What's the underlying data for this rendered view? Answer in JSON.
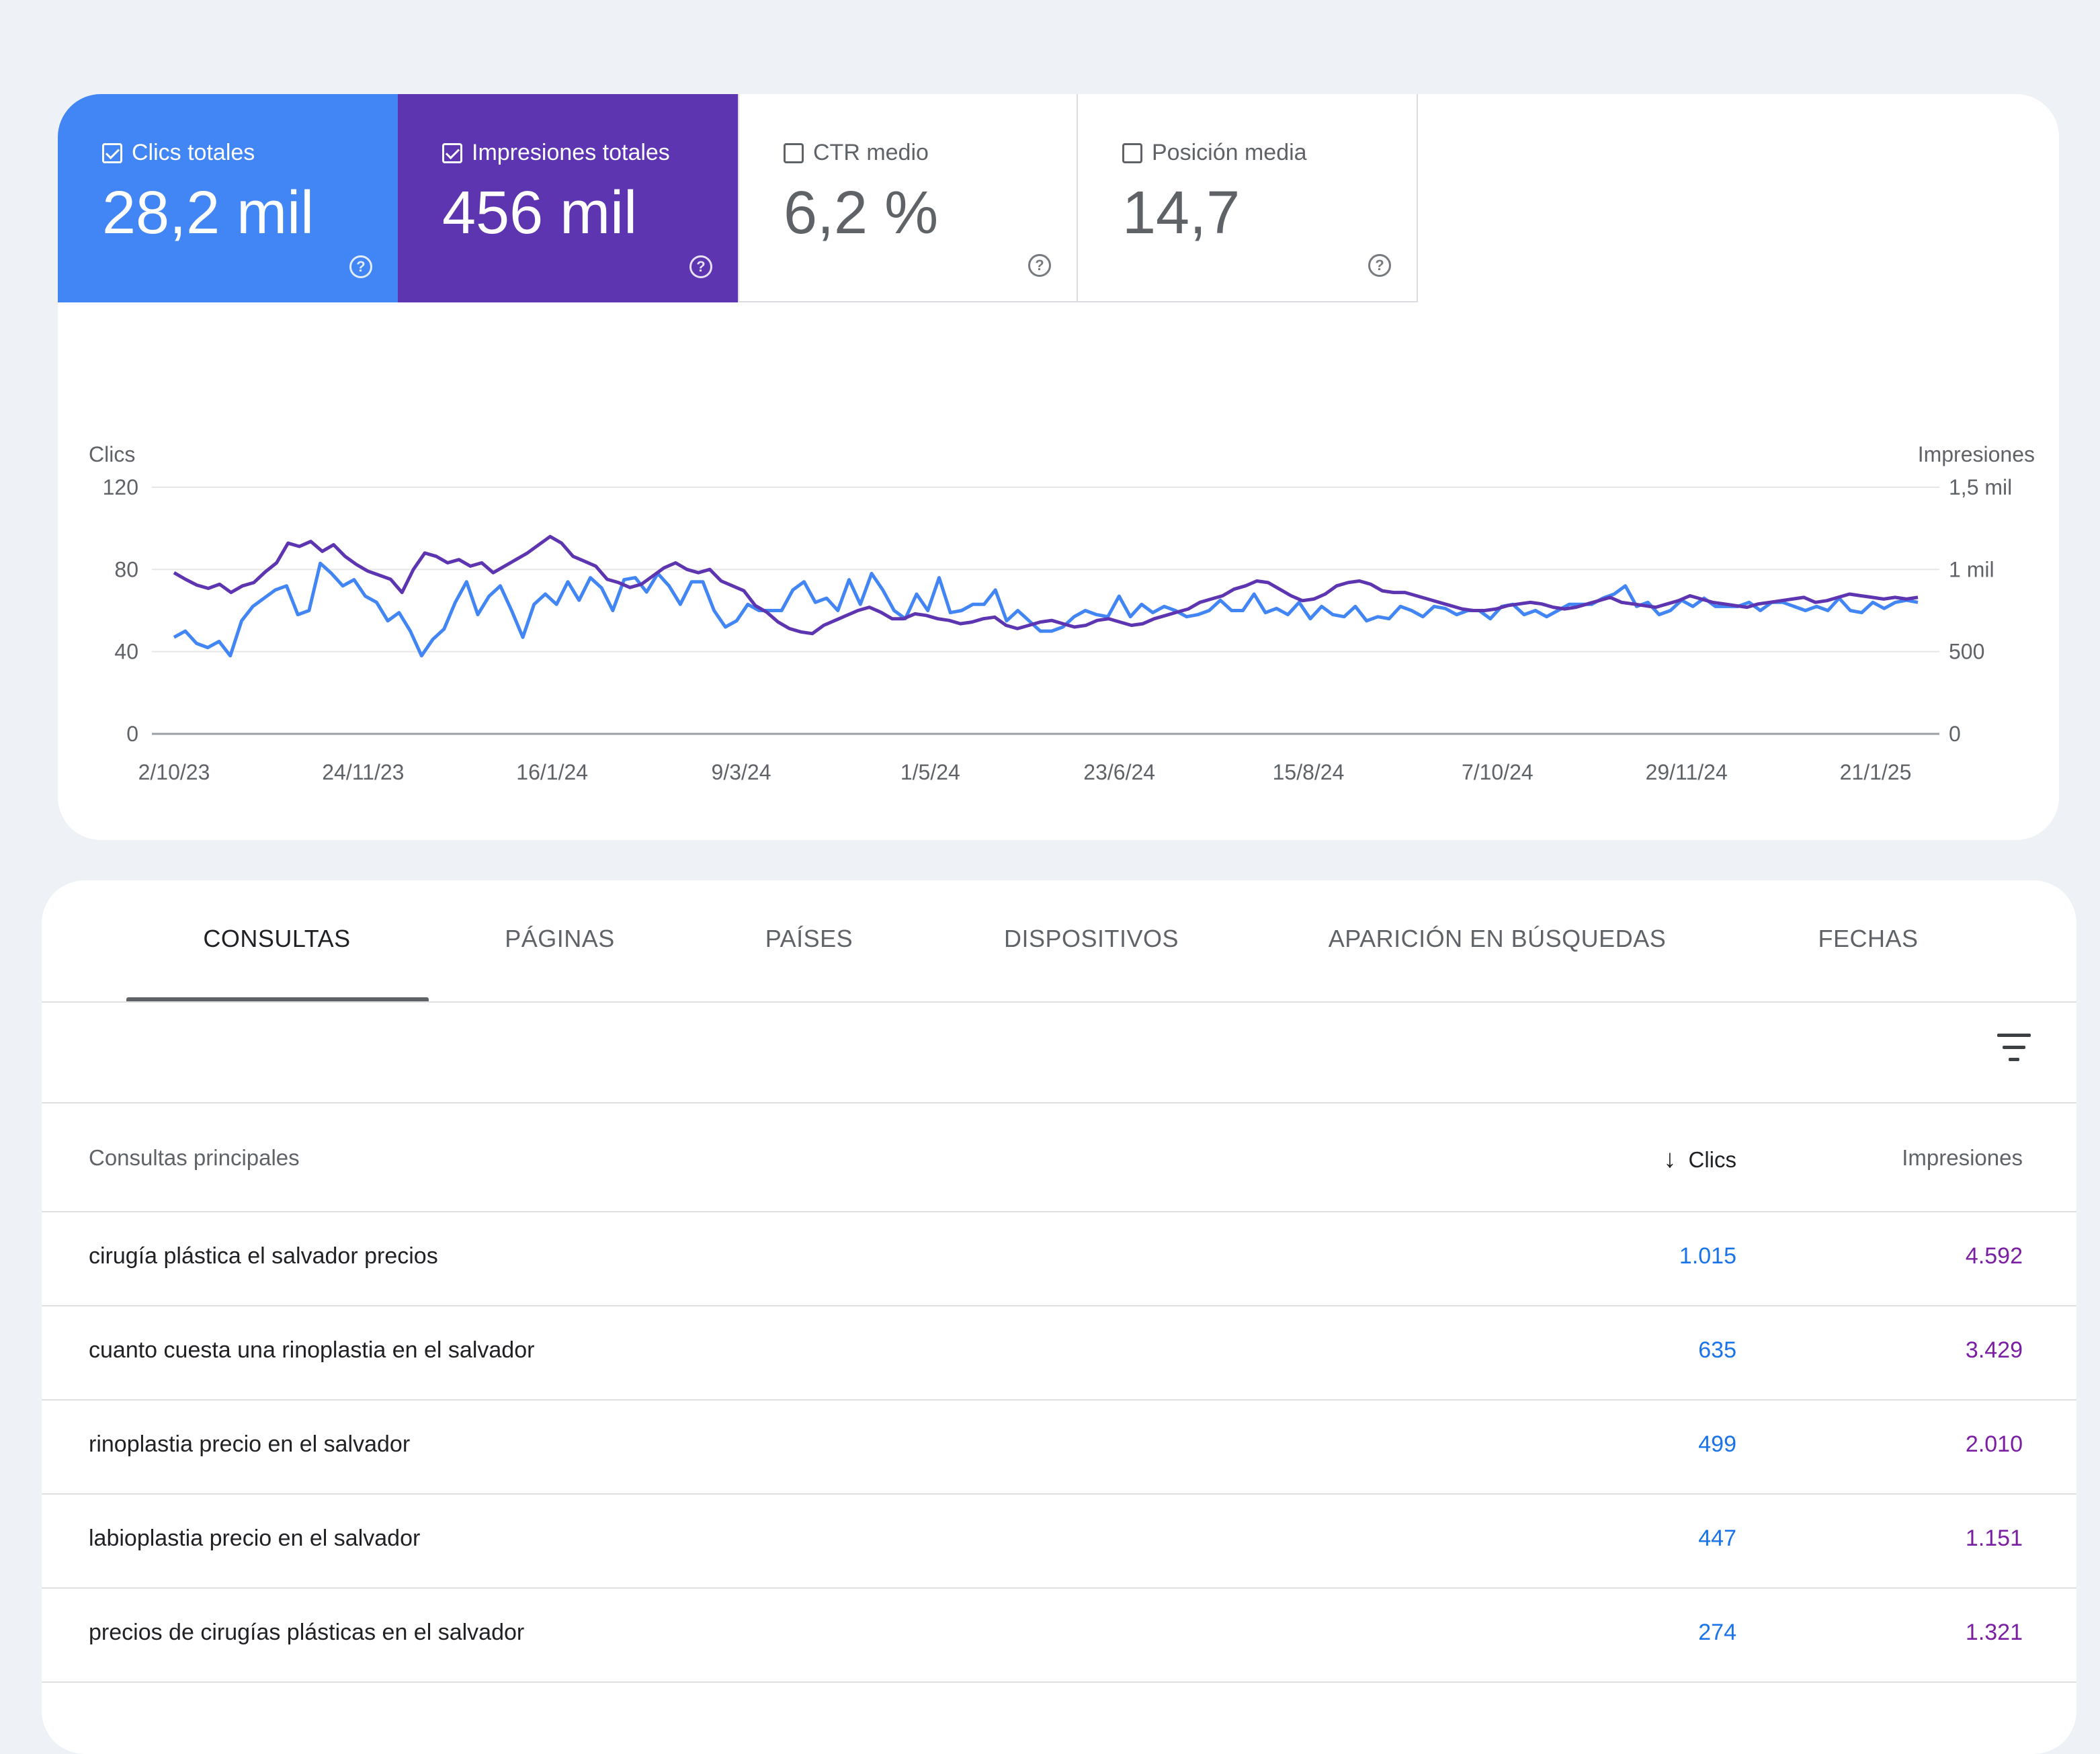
{
  "metrics": {
    "clicks": {
      "label": "Clics totales",
      "value": "28,2 mil",
      "checked": true
    },
    "impressions": {
      "label": "Impresiones totales",
      "value": "456 mil",
      "checked": true
    },
    "ctr": {
      "label": "CTR medio",
      "value": "6,2 %",
      "checked": false
    },
    "position": {
      "label": "Posición media",
      "value": "14,7",
      "checked": false
    }
  },
  "colors": {
    "clicks": "#4285f4",
    "impressions": "#5e35b1",
    "accent_link": "#1a73e8",
    "impressions_text": "#7b1fa2"
  },
  "chart_data": {
    "type": "line",
    "y_left_label": "Clics",
    "y_right_label": "Impresiones",
    "y_left_ticks": [
      "0",
      "40",
      "80",
      "120"
    ],
    "y_right_ticks": [
      "0",
      "500",
      "1 mil",
      "1,5 mil"
    ],
    "y_left_range": [
      0,
      120
    ],
    "y_right_range": [
      0,
      1500
    ],
    "x_ticks": [
      "2/10/23",
      "24/11/23",
      "16/1/24",
      "9/3/24",
      "1/5/24",
      "23/6/24",
      "15/8/24",
      "7/10/24",
      "29/11/24",
      "21/1/25"
    ],
    "x_range": [
      "2/10/23",
      "4/2/25"
    ],
    "grid": true,
    "series": [
      {
        "name": "Clics totales",
        "axis": "left",
        "color": "#4285f4",
        "values": [
          47,
          50,
          44,
          42,
          45,
          38,
          55,
          62,
          66,
          70,
          72,
          58,
          60,
          83,
          78,
          72,
          75,
          67,
          64,
          55,
          59,
          50,
          38,
          46,
          51,
          64,
          74,
          58,
          67,
          72,
          60,
          47,
          63,
          68,
          63,
          74,
          65,
          76,
          71,
          60,
          75,
          76,
          69,
          78,
          72,
          63,
          74,
          74,
          60,
          52,
          55,
          63,
          60,
          60,
          60,
          70,
          74,
          64,
          66,
          60,
          75,
          63,
          78,
          70,
          60,
          56,
          68,
          60,
          76,
          59,
          60,
          63,
          63,
          70,
          55,
          60,
          55,
          50,
          50,
          52,
          57,
          60,
          58,
          57,
          67,
          57,
          63,
          59,
          62,
          60,
          57,
          58,
          60,
          65,
          60,
          60,
          68,
          59,
          61,
          58,
          64,
          56,
          62,
          58,
          57,
          62,
          55,
          57,
          56,
          62,
          60,
          57,
          62,
          61,
          58,
          60,
          60,
          56,
          62,
          63,
          58,
          60,
          57,
          60,
          63,
          63,
          63,
          66,
          68,
          72,
          62,
          64,
          58,
          60,
          65,
          62,
          66,
          62,
          62,
          62,
          64,
          60,
          64,
          64,
          62,
          60,
          62,
          60,
          66,
          60,
          59,
          64,
          61,
          64,
          65,
          64
        ]
      },
      {
        "name": "Impresiones totales",
        "axis": "right",
        "color": "#5e35b1",
        "values": [
          980,
          940,
          905,
          885,
          910,
          860,
          900,
          920,
          985,
          1040,
          1160,
          1140,
          1170,
          1110,
          1150,
          1080,
          1030,
          990,
          965,
          940,
          860,
          1000,
          1100,
          1080,
          1040,
          1060,
          1020,
          1040,
          980,
          1020,
          1060,
          1100,
          1150,
          1200,
          1160,
          1080,
          1050,
          1020,
          940,
          920,
          890,
          910,
          960,
          1010,
          1040,
          1000,
          980,
          1000,
          930,
          900,
          870,
          780,
          740,
          680,
          640,
          620,
          610,
          660,
          690,
          720,
          750,
          770,
          740,
          700,
          700,
          730,
          720,
          700,
          690,
          670,
          680,
          700,
          710,
          660,
          640,
          660,
          680,
          690,
          670,
          650,
          660,
          690,
          700,
          680,
          660,
          670,
          700,
          720,
          740,
          760,
          800,
          820,
          840,
          880,
          900,
          930,
          920,
          880,
          840,
          810,
          820,
          850,
          900,
          920,
          930,
          910,
          870,
          860,
          860,
          840,
          820,
          800,
          780,
          760,
          750,
          750,
          760,
          780,
          790,
          800,
          790,
          770,
          760,
          770,
          790,
          810,
          830,
          800,
          790,
          780,
          770,
          790,
          810,
          840,
          820,
          800,
          790,
          780,
          770,
          790,
          800,
          810,
          820,
          830,
          800,
          810,
          830,
          850,
          840,
          830,
          820,
          830,
          820,
          830
        ]
      }
    ]
  },
  "tabs": [
    "CONSULTAS",
    "PÁGINAS",
    "PAÍSES",
    "DISPOSITIVOS",
    "APARICIÓN EN BÚSQUEDAS",
    "FECHAS"
  ],
  "active_tab": "CONSULTAS",
  "table": {
    "headers": {
      "query": "Consultas principales",
      "clicks": "Clics",
      "impressions": "Impresiones"
    },
    "sort_icon": "arrow-down-icon",
    "rows": [
      {
        "query": "cirugía plástica el salvador precios",
        "clicks": "1.015",
        "impressions": "4.592"
      },
      {
        "query": "cuanto cuesta una rinoplastia en el salvador",
        "clicks": "635",
        "impressions": "3.429"
      },
      {
        "query": "rinoplastia precio en el salvador",
        "clicks": "499",
        "impressions": "2.010"
      },
      {
        "query": "labioplastia precio en el salvador",
        "clicks": "447",
        "impressions": "1.151"
      },
      {
        "query": "precios de cirugías plásticas en el salvador",
        "clicks": "274",
        "impressions": "1.321"
      }
    ]
  }
}
